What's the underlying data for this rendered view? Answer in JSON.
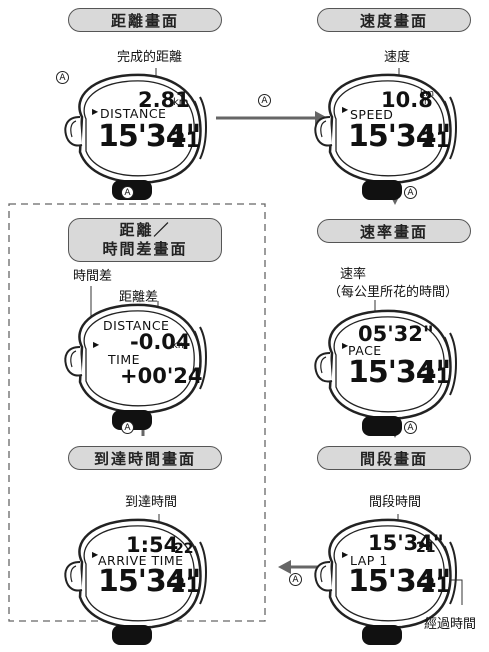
{
  "screens": {
    "distance": {
      "title": "距離畫面",
      "annotation": "完成的距離",
      "value": "2.81",
      "unit": "km",
      "label": "DISTANCE"
    },
    "speed": {
      "title": "速度畫面",
      "annotation": "速度",
      "value": "10.8",
      "unit_top": "km",
      "unit_bottom": "/h",
      "label": "SPEED"
    },
    "diff": {
      "title_line1": "距離／",
      "title_line2": "時間差畫面",
      "annotation_time": "時間差",
      "annotation_dist": "距離差",
      "label_dist": "DISTANCE",
      "value_dist": "-0.04",
      "unit_dist": "km",
      "label_time": "TIME",
      "value_time": "+00'24"
    },
    "pace": {
      "title": "速率畫面",
      "annotation_line1": "速率",
      "annotation_line2": "（每公里所花的時間）",
      "value": "05'32\"",
      "label": "PACE"
    },
    "arrive": {
      "title": "到達時間畫面",
      "annotation": "到達時間",
      "value_main": "1:54",
      "value_sub": "22",
      "label": "ARRIVE TIME"
    },
    "lap": {
      "title": "間段畫面",
      "annotation": "間段時間",
      "value_main": "15'34\"",
      "value_sub": "21",
      "label": "LAP 1",
      "annotation_elapsed": "經過時間"
    }
  },
  "elapsed": {
    "main": "15'34\"",
    "sub": "21"
  },
  "button_label": "A"
}
